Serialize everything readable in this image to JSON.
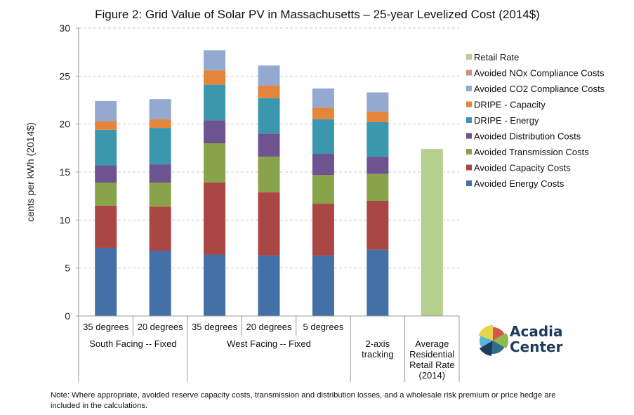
{
  "chart_data": {
    "type": "bar",
    "stacked": true,
    "title": "Figure 2: Grid Value of Solar PV in Massachusetts – 25-year Levelized Cost (2014$)",
    "ylabel": "cents per kWh (2014$)",
    "ylim": [
      0,
      30
    ],
    "yticks": [
      0,
      5,
      10,
      15,
      20,
      25,
      30
    ],
    "grid": true,
    "legend_position": "right",
    "categories": [
      "35 degrees",
      "20 degrees",
      "35 degrees",
      "20 degrees",
      "5 degrees",
      "2-axis tracking",
      "Average Residential Retail Rate (2014)"
    ],
    "groups": [
      {
        "label": "South Facing -- Fixed",
        "span": 2
      },
      {
        "label": "West Facing -- Fixed",
        "span": 3
      },
      {
        "label": "",
        "span": 1
      },
      {
        "label": "",
        "span": 1
      }
    ],
    "series": [
      {
        "name": "Avoided Energy Costs",
        "color": "#4470a8",
        "values": [
          7.1,
          6.8,
          6.4,
          6.3,
          6.3,
          6.9,
          0
        ]
      },
      {
        "name": "Avoided Capacity Costs",
        "color": "#a94744",
        "values": [
          4.4,
          4.6,
          7.5,
          6.6,
          5.4,
          5.1,
          0
        ]
      },
      {
        "name": "Avoided Transmission Costs",
        "color": "#88a34a",
        "values": [
          2.4,
          2.5,
          4.1,
          3.7,
          3.0,
          2.8,
          0
        ]
      },
      {
        "name": "Avoided Distribution Costs",
        "color": "#6d5390",
        "values": [
          1.8,
          1.9,
          2.4,
          2.4,
          2.2,
          1.8,
          0
        ]
      },
      {
        "name": "DRIPE - Energy",
        "color": "#3b97ae",
        "values": [
          3.7,
          3.8,
          3.7,
          3.7,
          3.6,
          3.6,
          0
        ]
      },
      {
        "name": "DRIPE - Capacity",
        "color": "#e4853b",
        "values": [
          0.9,
          0.9,
          1.5,
          1.3,
          1.2,
          1.1,
          0
        ]
      },
      {
        "name": "Avoided CO2 Compliance Costs",
        "color": "#93a9cf",
        "values": [
          2.1,
          2.1,
          2.1,
          2.1,
          2.0,
          2.0,
          0
        ]
      },
      {
        "name": "Avoided NOx Compliance Costs",
        "color": "#c98f8b",
        "values": [
          0,
          0,
          0,
          0,
          0,
          0,
          0
        ]
      },
      {
        "name": "Retail Rate",
        "color": "#b5cf8e",
        "values": [
          0,
          0,
          0,
          0,
          0,
          0,
          17.4
        ]
      }
    ]
  },
  "note": "Note: Where appropriate, avoided reserve capacity costs, transmission and distribution losses, and a wholesale risk premium or price hedge are included in the calculations.",
  "logo": {
    "line1": "Acadia",
    "line2": "Center",
    "colors": [
      "#e9d34c",
      "#d9534f",
      "#8fb94a",
      "#2f6d8c",
      "#1f3b5c",
      "#5bb3d6"
    ]
  }
}
